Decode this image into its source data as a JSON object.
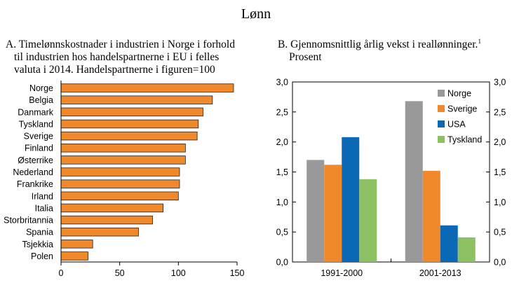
{
  "title": "Lønn",
  "chart_data": [
    {
      "type": "bar",
      "orientation": "horizontal",
      "panel": "A.",
      "title_lines": [
        "Timelønnskostnader i industrien i Norge i forhold",
        "til industrien hos handelspartnerne i EU i felles",
        "valuta i 2014. Handelspartnerne i figuren=100"
      ],
      "categories": [
        "Norge",
        "Belgia",
        "Danmark",
        "Tyskland",
        "Sverige",
        "Finland",
        "Østerrike",
        "Nederland",
        "Frankrike",
        "Irland",
        "Italia",
        "Storbritannia",
        "Spania",
        "Tsjekkia",
        "Polen"
      ],
      "values": [
        147,
        129,
        121,
        117,
        116,
        106,
        106,
        101,
        101,
        100,
        87,
        78,
        66,
        27,
        23
      ],
      "xlim": [
        0,
        150
      ],
      "xticks": [
        "0",
        "50",
        "100",
        "150"
      ],
      "color": "#f0892b",
      "grid": false
    },
    {
      "type": "bar",
      "panel": "B.",
      "title_main": "Gjennomsnittlig årlig vekst i reallønninger.",
      "title_sup": "1",
      "title_line2": "Prosent",
      "categories": [
        "1991-2000",
        "2001-2013"
      ],
      "series": [
        {
          "name": "Norge",
          "color": "#999999",
          "values": [
            1.7,
            2.68
          ]
        },
        {
          "name": "Sverige",
          "color": "#f0892b",
          "values": [
            1.62,
            1.52
          ]
        },
        {
          "name": "USA",
          "color": "#0a68b4",
          "values": [
            2.08,
            0.61
          ]
        },
        {
          "name": "Tyskland",
          "color": "#8cc063",
          "values": [
            1.38,
            0.41
          ]
        }
      ],
      "ylim": [
        0,
        3.0
      ],
      "yticks": [
        "0,0",
        "0,5",
        "1,0",
        "1,5",
        "2,0",
        "2,5",
        "3,0"
      ],
      "legend_position": "top-right",
      "grid": false
    }
  ]
}
